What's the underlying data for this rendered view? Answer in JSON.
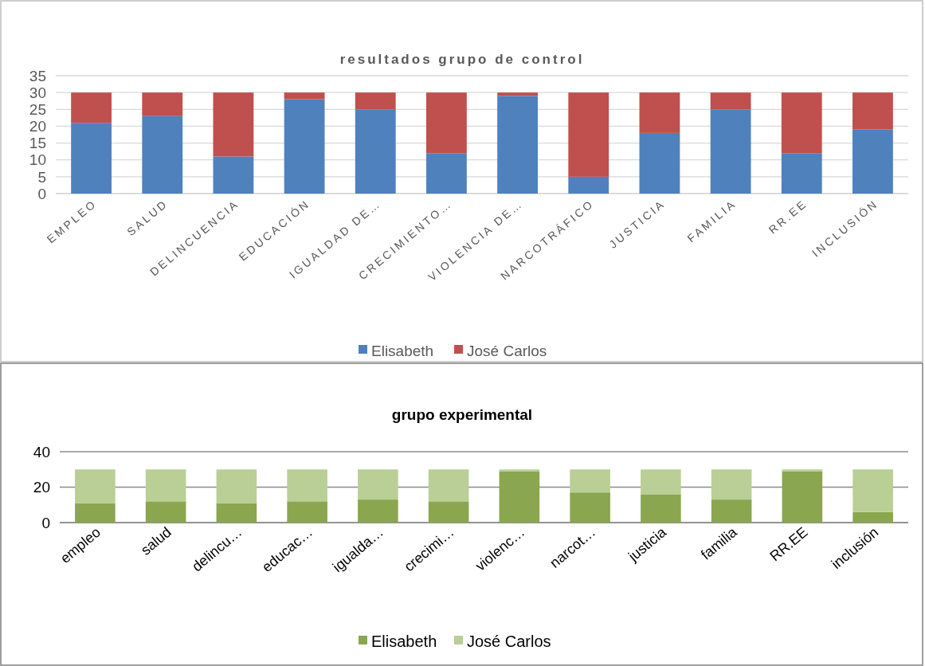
{
  "chart_data": [
    {
      "type": "bar",
      "title": "resultados grupo de control",
      "categories": [
        "EMPLEO",
        "SALUD",
        "DELINCUENCIA",
        "EDUCACIÓN",
        "IGUALDAD DE…",
        "CRECIMIENTO…",
        "VIOLENCIA DE…",
        "NARCOTRÁFICO",
        "JUSTICIA",
        "FAMILIA",
        "RR.EE",
        "INCLUSIÓN"
      ],
      "stacked": true,
      "series": [
        {
          "name": "Elisabeth",
          "color": "#4f81bd",
          "values": [
            21,
            23,
            11,
            28,
            25,
            12,
            29,
            5,
            18,
            25,
            12,
            19
          ]
        },
        {
          "name": "José Carlos",
          "color": "#c0504d",
          "values": [
            9,
            7,
            19,
            2,
            5,
            18,
            1,
            25,
            12,
            5,
            18,
            11
          ]
        }
      ],
      "ylim": [
        0,
        35
      ],
      "yticks": [
        0,
        5,
        10,
        15,
        20,
        25,
        30,
        35
      ],
      "grid": "y",
      "legend": "bottom"
    },
    {
      "type": "bar",
      "title": "grupo experimental",
      "categories": [
        "empleo",
        "salud",
        "delincu…",
        "educac…",
        "igualda…",
        "crecimi…",
        "violenc…",
        "narcot…",
        "justicia",
        "familia",
        "RR.EE",
        "inclusión"
      ],
      "stacked": true,
      "series": [
        {
          "name": "Elisabeth",
          "color": "#8aa64f",
          "values": [
            11,
            12,
            11,
            12,
            13,
            12,
            29,
            17,
            16,
            13,
            29,
            6
          ]
        },
        {
          "name": "José Carlos",
          "color": "#b9cf96",
          "values": [
            19,
            18,
            19,
            18,
            17,
            18,
            1,
            13,
            14,
            17,
            1,
            24
          ]
        }
      ],
      "ylim": [
        0,
        40
      ],
      "yticks": [
        0,
        20,
        40
      ],
      "grid": "y",
      "legend": "bottom"
    }
  ]
}
